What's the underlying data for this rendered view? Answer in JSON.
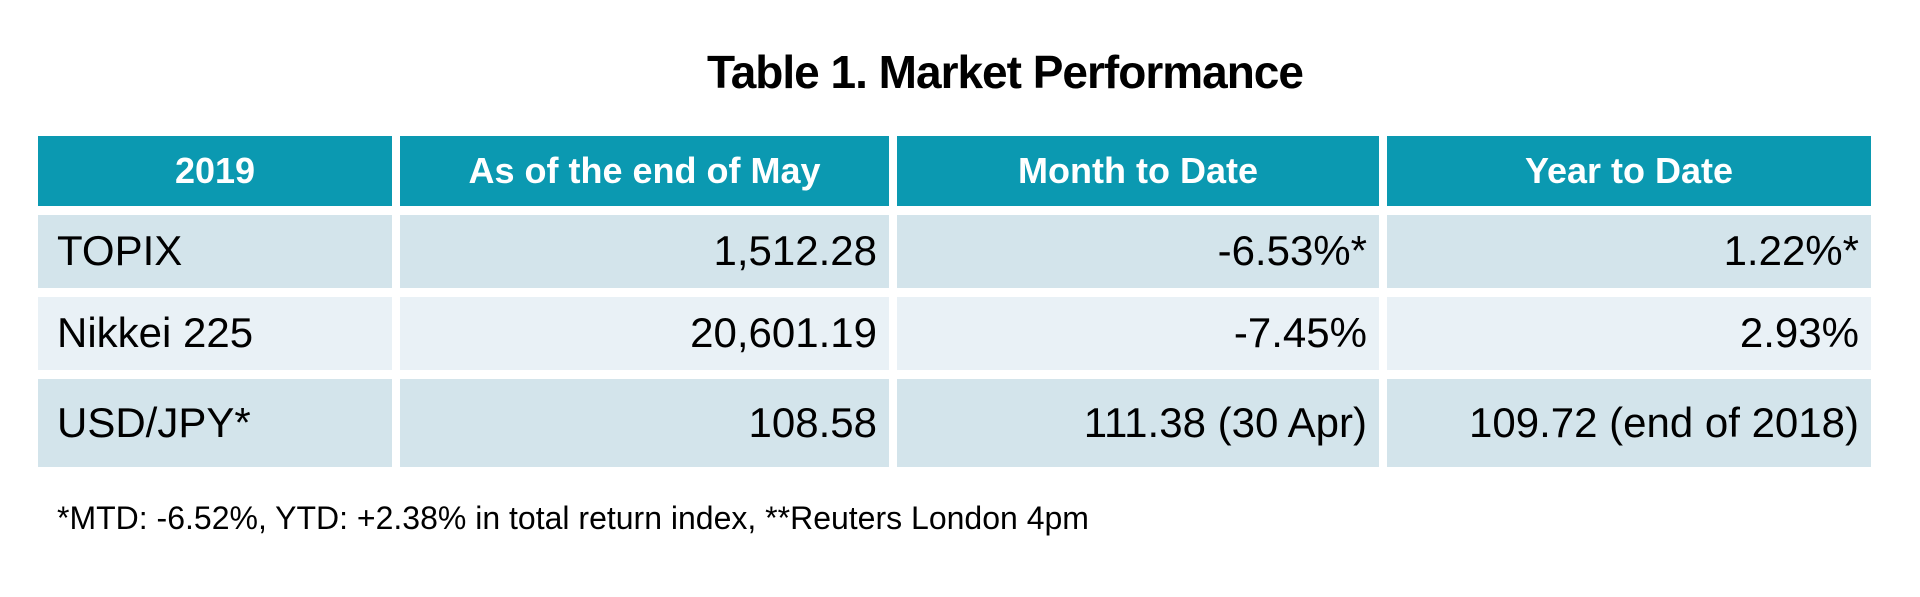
{
  "title": "Table 1. Market Performance",
  "table": {
    "columns": [
      {
        "label": "2019"
      },
      {
        "label": "As of the end of May"
      },
      {
        "label": "Month to Date"
      },
      {
        "label": "Year to Date"
      }
    ],
    "rows": [
      {
        "label": "TOPIX",
        "values": [
          "1,512.28",
          "-6.53%*",
          "1.22%*"
        ]
      },
      {
        "label": "Nikkei 225",
        "values": [
          "20,601.19",
          "-7.45%",
          "2.93%"
        ]
      },
      {
        "label": "USD/JPY*",
        "values": [
          "108.58",
          "111.38 (30 Apr)",
          "109.72 (end of 2018)"
        ]
      }
    ]
  },
  "footnote": "*MTD: -6.52%, YTD: +2.38% in total return index, **Reuters London 4pm",
  "colors": {
    "page_bg": "#FFFFFF",
    "header_bg": "#0B99B1",
    "header_text": "#FFFFFF",
    "row_odd_bg": "#D3E4EB",
    "row_even_bg": "#E9F1F6",
    "body_text": "#000000"
  }
}
